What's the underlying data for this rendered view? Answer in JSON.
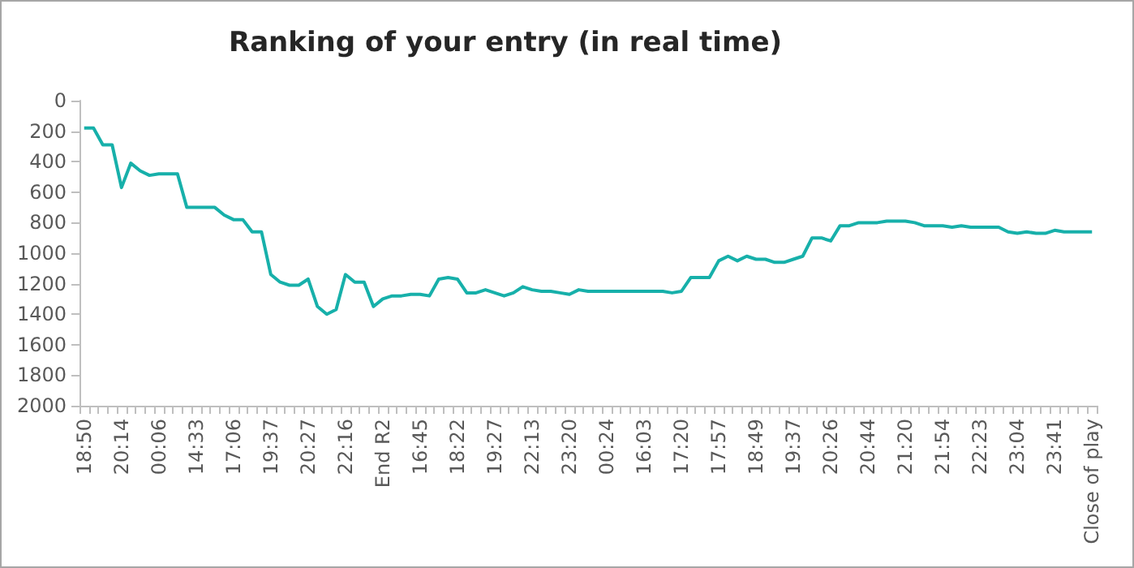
{
  "chart_data": {
    "type": "line",
    "title": "Ranking of your entry (in real time)",
    "categories": [
      "18:50",
      null,
      null,
      null,
      "20:14",
      null,
      null,
      null,
      "00:06",
      null,
      null,
      null,
      "14:33",
      null,
      null,
      null,
      "17:06",
      null,
      null,
      null,
      "19:37",
      null,
      null,
      null,
      "20:27",
      null,
      null,
      null,
      "22:16",
      null,
      null,
      null,
      "End R2",
      null,
      null,
      null,
      "16:45",
      null,
      null,
      null,
      "18:22",
      null,
      null,
      null,
      "19:27",
      null,
      null,
      null,
      "22:13",
      null,
      null,
      null,
      "23:20",
      null,
      null,
      null,
      "00:24",
      null,
      null,
      null,
      "16:03",
      null,
      null,
      null,
      "17:20",
      null,
      null,
      null,
      "17:57",
      null,
      null,
      null,
      "18:49",
      null,
      null,
      null,
      "19:37",
      null,
      null,
      null,
      "20:26",
      null,
      null,
      null,
      "20:44",
      null,
      null,
      null,
      "21:20",
      null,
      null,
      null,
      "21:54",
      null,
      null,
      null,
      "22:23",
      null,
      null,
      null,
      "23:04",
      null,
      null,
      null,
      "23:41",
      null,
      null,
      null,
      "Close of play"
    ],
    "series": [
      {
        "color": "#17b0aa",
        "values": [
          180,
          180,
          290,
          290,
          570,
          410,
          460,
          490,
          480,
          480,
          480,
          700,
          700,
          700,
          700,
          750,
          780,
          780,
          860,
          860,
          1140,
          1190,
          1210,
          1210,
          1170,
          1350,
          1400,
          1370,
          1140,
          1190,
          1190,
          1350,
          1300,
          1280,
          1280,
          1270,
          1270,
          1280,
          1170,
          1160,
          1170,
          1260,
          1260,
          1240,
          1260,
          1280,
          1260,
          1220,
          1240,
          1250,
          1250,
          1260,
          1270,
          1240,
          1250,
          1250,
          1250,
          1250,
          1250,
          1250,
          1250,
          1250,
          1250,
          1260,
          1250,
          1160,
          1160,
          1160,
          1050,
          1020,
          1050,
          1020,
          1040,
          1040,
          1060,
          1060,
          1040,
          1020,
          900,
          900,
          920,
          820,
          820,
          800,
          800,
          800,
          790,
          790,
          790,
          800,
          820,
          820,
          820,
          830,
          820,
          830,
          830,
          830,
          830,
          860,
          870,
          860,
          870,
          870,
          850,
          860,
          860,
          860,
          860
        ]
      }
    ],
    "ylim": [
      2000,
      0
    ],
    "yticks": [
      0,
      200,
      400,
      600,
      800,
      1000,
      1200,
      1400,
      1600,
      1800,
      2000
    ],
    "grid": false,
    "marker": "none"
  }
}
